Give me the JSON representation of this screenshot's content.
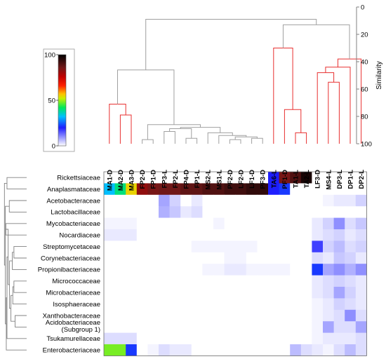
{
  "chart_data": {
    "type": "heatmap",
    "columns": [
      "MA1-D",
      "MA2-D",
      "MA3-D",
      "FP2-D",
      "FP1-D",
      "FP3-L",
      "FP2-L",
      "FP4-D",
      "FP1-L",
      "MS2-L",
      "MS1-L",
      "PF2-D",
      "LF2-D",
      "LF1-D",
      "PF3-D",
      "TA6-L",
      "PF1-D",
      "TA1-L",
      "TA2-L",
      "LF3-D",
      "MS4-L",
      "DP3-L",
      "DP1-L",
      "DP2-L"
    ],
    "rows": [
      "Rickettsiaceae",
      "Anaplasmataceae",
      "Acetobacteraceae",
      "Lactobacillaceae",
      "Mycobacteriaceae",
      "Nocardiaceae",
      "Streptomycetaceae",
      "Corynebacteriaceae",
      "Propionibacteriaceae",
      "Micrococcaceae",
      "Microbacteriaceae",
      "Isosphaeraceae",
      "Xanthobacteraceae",
      "Acidobacteriaceae\n(Subgroup 1)",
      "Tsukamurellaceae",
      "Enterobacteriaceae"
    ],
    "values": [
      [
        0,
        0,
        0,
        0,
        0,
        0,
        0,
        0,
        0,
        0,
        0,
        0,
        0,
        0,
        0,
        20,
        85,
        90,
        97,
        0,
        0,
        0,
        0,
        0
      ],
      [
        32,
        40,
        55,
        82,
        85,
        86,
        86,
        88,
        88,
        90,
        90,
        92,
        92,
        94,
        94,
        20,
        22,
        0,
        0,
        0,
        0,
        0,
        0,
        0
      ],
      [
        0,
        0,
        0,
        0,
        0,
        8,
        4,
        0,
        2,
        0,
        0,
        0,
        0,
        0,
        0,
        0,
        0,
        0,
        0,
        0,
        1,
        2,
        2,
        4
      ],
      [
        0,
        0,
        0,
        0,
        0,
        7,
        5,
        2,
        3,
        0,
        0,
        0,
        0,
        0,
        0,
        0,
        0,
        0,
        0,
        0,
        0,
        0,
        0,
        0
      ],
      [
        1,
        1,
        1,
        0,
        0,
        0,
        0,
        0,
        0,
        0,
        1,
        0,
        0,
        0,
        0,
        0,
        0,
        0,
        0,
        2,
        4,
        10,
        3,
        5
      ],
      [
        2,
        2,
        2,
        0,
        0,
        0,
        0,
        0,
        0,
        0,
        0,
        0,
        0,
        0,
        0,
        0,
        0,
        0,
        0,
        2,
        3,
        4,
        2,
        3
      ],
      [
        0,
        0,
        0,
        0,
        0,
        0,
        0,
        0,
        1,
        1,
        1,
        1,
        1,
        1,
        0,
        0,
        0,
        0,
        0,
        17,
        4,
        6,
        3,
        4
      ],
      [
        0,
        0,
        0,
        0,
        0,
        0,
        0,
        0,
        0,
        0,
        0,
        1,
        1,
        0,
        0,
        0,
        0,
        0,
        0,
        3,
        2,
        5,
        4,
        2
      ],
      [
        0,
        0,
        0,
        0,
        0,
        0,
        0,
        0,
        0,
        1,
        1,
        2,
        2,
        1,
        1,
        1,
        1,
        0,
        0,
        22,
        8,
        10,
        7,
        10
      ],
      [
        0,
        0,
        0,
        0,
        0,
        0,
        0,
        0,
        0,
        0,
        0,
        0,
        0,
        0,
        0,
        0,
        0,
        0,
        0,
        2,
        3,
        4,
        3,
        2
      ],
      [
        0,
        0,
        0,
        0,
        0,
        0,
        0,
        0,
        0,
        0,
        0,
        0,
        0,
        0,
        0,
        0,
        0,
        0,
        0,
        2,
        3,
        8,
        4,
        2
      ],
      [
        0,
        0,
        0,
        0,
        0,
        0,
        0,
        0,
        0,
        0,
        0,
        0,
        0,
        0,
        0,
        0,
        0,
        0,
        0,
        1,
        2,
        4,
        3,
        2
      ],
      [
        0,
        0,
        0,
        0,
        0,
        0,
        0,
        0,
        0,
        0,
        0,
        0,
        0,
        0,
        0,
        0,
        0,
        0,
        0,
        1,
        2,
        3,
        10,
        3
      ],
      [
        0,
        0,
        0,
        0,
        0,
        0,
        0,
        0,
        0,
        0,
        0,
        0,
        0,
        0,
        0,
        0,
        0,
        0,
        0,
        1,
        8,
        3,
        3,
        8
      ],
      [
        3,
        3,
        3,
        0,
        0,
        0,
        0,
        0,
        0,
        0,
        0,
        0,
        0,
        0,
        0,
        0,
        0,
        0,
        0,
        1,
        2,
        2,
        2,
        3
      ],
      [
        48,
        48,
        22,
        0,
        1,
        3,
        2,
        2,
        0,
        0,
        0,
        0,
        0,
        0,
        0,
        0,
        0,
        6,
        3,
        2,
        1,
        3,
        6,
        3
      ]
    ],
    "color_scale": {
      "min": 0,
      "max": 100,
      "ticks": [
        0,
        50,
        100
      ],
      "stops": [
        {
          "v": 0,
          "c": "#ffffff"
        },
        {
          "v": 20,
          "c": "#1e1eff"
        },
        {
          "v": 32,
          "c": "#00bfff"
        },
        {
          "v": 42,
          "c": "#00e85a"
        },
        {
          "v": 52,
          "c": "#c8f000"
        },
        {
          "v": 57,
          "c": "#ffc000"
        },
        {
          "v": 66,
          "c": "#ff2000"
        },
        {
          "v": 76,
          "c": "#c00000"
        },
        {
          "v": 86,
          "c": "#701818"
        },
        {
          "v": 100,
          "c": "#000000"
        }
      ]
    },
    "similarity_axis": {
      "label": "Similarity",
      "ticks": [
        0,
        20,
        40,
        60,
        80,
        100
      ],
      "range": [
        0,
        100
      ],
      "inverted": true
    },
    "column_dendrogram": [
      {
        "a": "MA2-D",
        "b": "MA3-D",
        "h": 79,
        "id": "n1"
      },
      {
        "a": "MA1-D",
        "b": "n1",
        "h": 71,
        "id": "n2"
      },
      {
        "a": "FP2-D",
        "b": "FP1-D",
        "h": 97,
        "id": "n3"
      },
      {
        "a": "FP3-L",
        "b": "FP2-L",
        "h": 91,
        "id": "n4"
      },
      {
        "a": "FP4-D",
        "b": "FP1-L",
        "h": 96,
        "id": "n5"
      },
      {
        "a": "n4",
        "b": "n5",
        "h": 89,
        "id": "n6"
      },
      {
        "a": "PF2-D",
        "b": "LF2-D",
        "h": 97,
        "id": "n7"
      },
      {
        "a": "LF1-D",
        "b": "PF3-D",
        "h": 96,
        "id": "n8"
      },
      {
        "a": "n7",
        "b": "n8",
        "h": 95,
        "id": "n9"
      },
      {
        "a": "MS1-L",
        "b": "n9",
        "h": 94,
        "id": "n10"
      },
      {
        "a": "MS2-L",
        "b": "n10",
        "h": 92,
        "id": "n11"
      },
      {
        "a": "n6",
        "b": "n11",
        "h": 88,
        "id": "n12"
      },
      {
        "a": "n3",
        "b": "n12",
        "h": 86,
        "id": "n13"
      },
      {
        "a": "n2",
        "b": "n13",
        "h": 46,
        "id": "n14"
      },
      {
        "a": "TA1-L",
        "b": "TA2-L",
        "h": 92,
        "id": "n15"
      },
      {
        "a": "PF1-D",
        "b": "n15",
        "h": 75,
        "id": "n16"
      },
      {
        "a": "TA6-L",
        "b": "n16",
        "h": 30,
        "id": "n17"
      },
      {
        "a": "MS4-L",
        "b": "DP3-L",
        "h": 55,
        "id": "n18"
      },
      {
        "a": "LF3-D",
        "b": "n18",
        "h": 48,
        "id": "n19"
      },
      {
        "a": "n19",
        "b": "DP1-L",
        "h": 44,
        "id": "n20"
      },
      {
        "a": "n20",
        "b": "DP2-L",
        "h": 38,
        "id": "n21"
      },
      {
        "a": "n17",
        "b": "n21",
        "h": 13,
        "id": "n22"
      },
      {
        "a": "n14",
        "b": "n22",
        "h": 9,
        "id": "n23"
      }
    ],
    "row_dendrogram": [
      {
        "a": "Rickettsiaceae",
        "b": "Anaplasmataceae",
        "h": 0.85,
        "id": "r1"
      },
      {
        "a": "Acetobacteraceae",
        "b": "Lactobacillaceae",
        "h": 0.75,
        "id": "r2"
      },
      {
        "a": "Mycobacteriaceae",
        "b": "Nocardiaceae",
        "h": 0.9,
        "id": "r3"
      },
      {
        "a": "Streptomycetaceae",
        "b": "Corynebacteriaceae",
        "h": 0.55,
        "id": "r4"
      },
      {
        "a": "r4",
        "b": "Propionibacteriaceae",
        "h": 0.62,
        "id": "r5"
      },
      {
        "a": "Micrococcaceae",
        "b": "Microbacteriaceae",
        "h": 0.55,
        "id": "r6"
      },
      {
        "a": "r6",
        "b": "Isosphaeraceae",
        "h": 0.6,
        "id": "r7"
      },
      {
        "a": "Xanthobacteraceae",
        "b": "Acidobacteriaceae\n(Subgroup 1)",
        "h": 0.5,
        "id": "r8"
      },
      {
        "a": "r7",
        "b": "r8",
        "h": 0.68,
        "id": "r9"
      },
      {
        "a": "r5",
        "b": "r9",
        "h": 0.74,
        "id": "r10"
      },
      {
        "a": "r3",
        "b": "r10",
        "h": 0.8,
        "id": "r11"
      },
      {
        "a": "r11",
        "b": "Tsukamurellaceae",
        "h": 0.85,
        "id": "r12"
      },
      {
        "a": "r12",
        "b": "Enterobacteriaceae",
        "h": 0.88,
        "id": "r13"
      },
      {
        "a": "r2",
        "b": "r13",
        "h": 0.92,
        "id": "r14"
      },
      {
        "a": "r1",
        "b": "r14",
        "h": 0.96,
        "id": "r15"
      }
    ],
    "dendrogram_colors": {
      "gray": "#a0a0a0",
      "red": "#e83030"
    },
    "red_clusters": [
      "n2",
      "n16",
      "n17",
      "n21"
    ]
  }
}
